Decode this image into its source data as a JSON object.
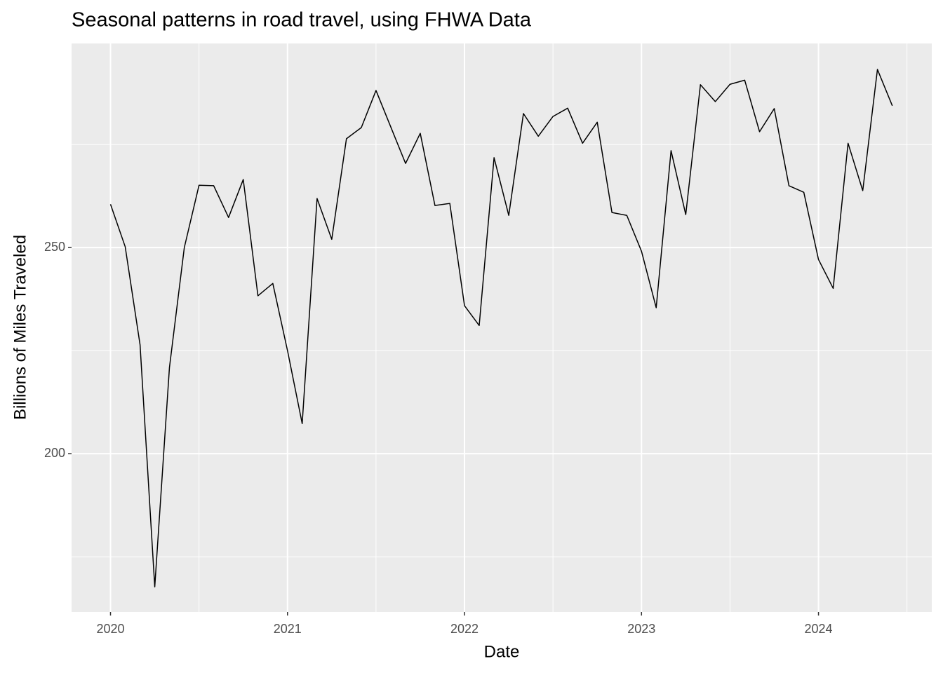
{
  "chart_data": {
    "type": "line",
    "title": "Seasonal patterns in road travel, using FHWA Data",
    "x_label": "Date",
    "y_label": "Billions of Miles Traveled",
    "x": [
      2020.0,
      2020.083,
      2020.167,
      2020.25,
      2020.333,
      2020.417,
      2020.5,
      2020.583,
      2020.667,
      2020.75,
      2020.833,
      2020.917,
      2021.0,
      2021.083,
      2021.167,
      2021.25,
      2021.333,
      2021.417,
      2021.5,
      2021.583,
      2021.667,
      2021.75,
      2021.833,
      2021.917,
      2022.0,
      2022.083,
      2022.167,
      2022.25,
      2022.333,
      2022.417,
      2022.5,
      2022.583,
      2022.667,
      2022.75,
      2022.833,
      2022.917,
      2023.0,
      2023.083,
      2023.167,
      2023.25,
      2023.333,
      2023.417,
      2023.5,
      2023.583,
      2023.667,
      2023.75,
      2023.833,
      2023.917,
      2024.0,
      2024.083,
      2024.167,
      2024.25,
      2024.333,
      2024.417
    ],
    "series": [
      {
        "color": "#000000",
        "values": [
          260.5,
          250.2,
          226.4,
          167.7,
          220.9,
          250.0,
          265.1,
          265.0,
          257.3,
          266.5,
          238.3,
          241.3,
          225.0,
          207.3,
          261.9,
          252.0,
          276.4,
          279.1,
          288.1,
          279.3,
          270.4,
          277.7,
          260.2,
          260.7,
          235.9,
          231.1,
          271.8,
          257.8,
          282.5,
          277.0,
          281.8,
          283.8,
          275.3,
          280.4,
          258.5,
          257.8,
          249.1,
          235.4,
          273.5,
          258.0,
          289.5,
          285.4,
          289.6,
          290.6,
          278.1,
          283.7,
          265.0,
          263.4,
          247.1,
          240.1,
          275.3,
          263.8,
          293.2,
          284.4
        ]
      }
    ],
    "xlim": [
      2019.78,
      2024.64
    ],
    "ylim": [
      161.6,
      299.5
    ],
    "xticks": [
      2020,
      2021,
      2022,
      2023,
      2024
    ],
    "yticks": [
      200,
      250
    ],
    "xminor": [
      2020.5,
      2021.5,
      2022.5,
      2023.5,
      2024.5
    ],
    "yminor": [
      175,
      225,
      275
    ],
    "grid": true
  }
}
